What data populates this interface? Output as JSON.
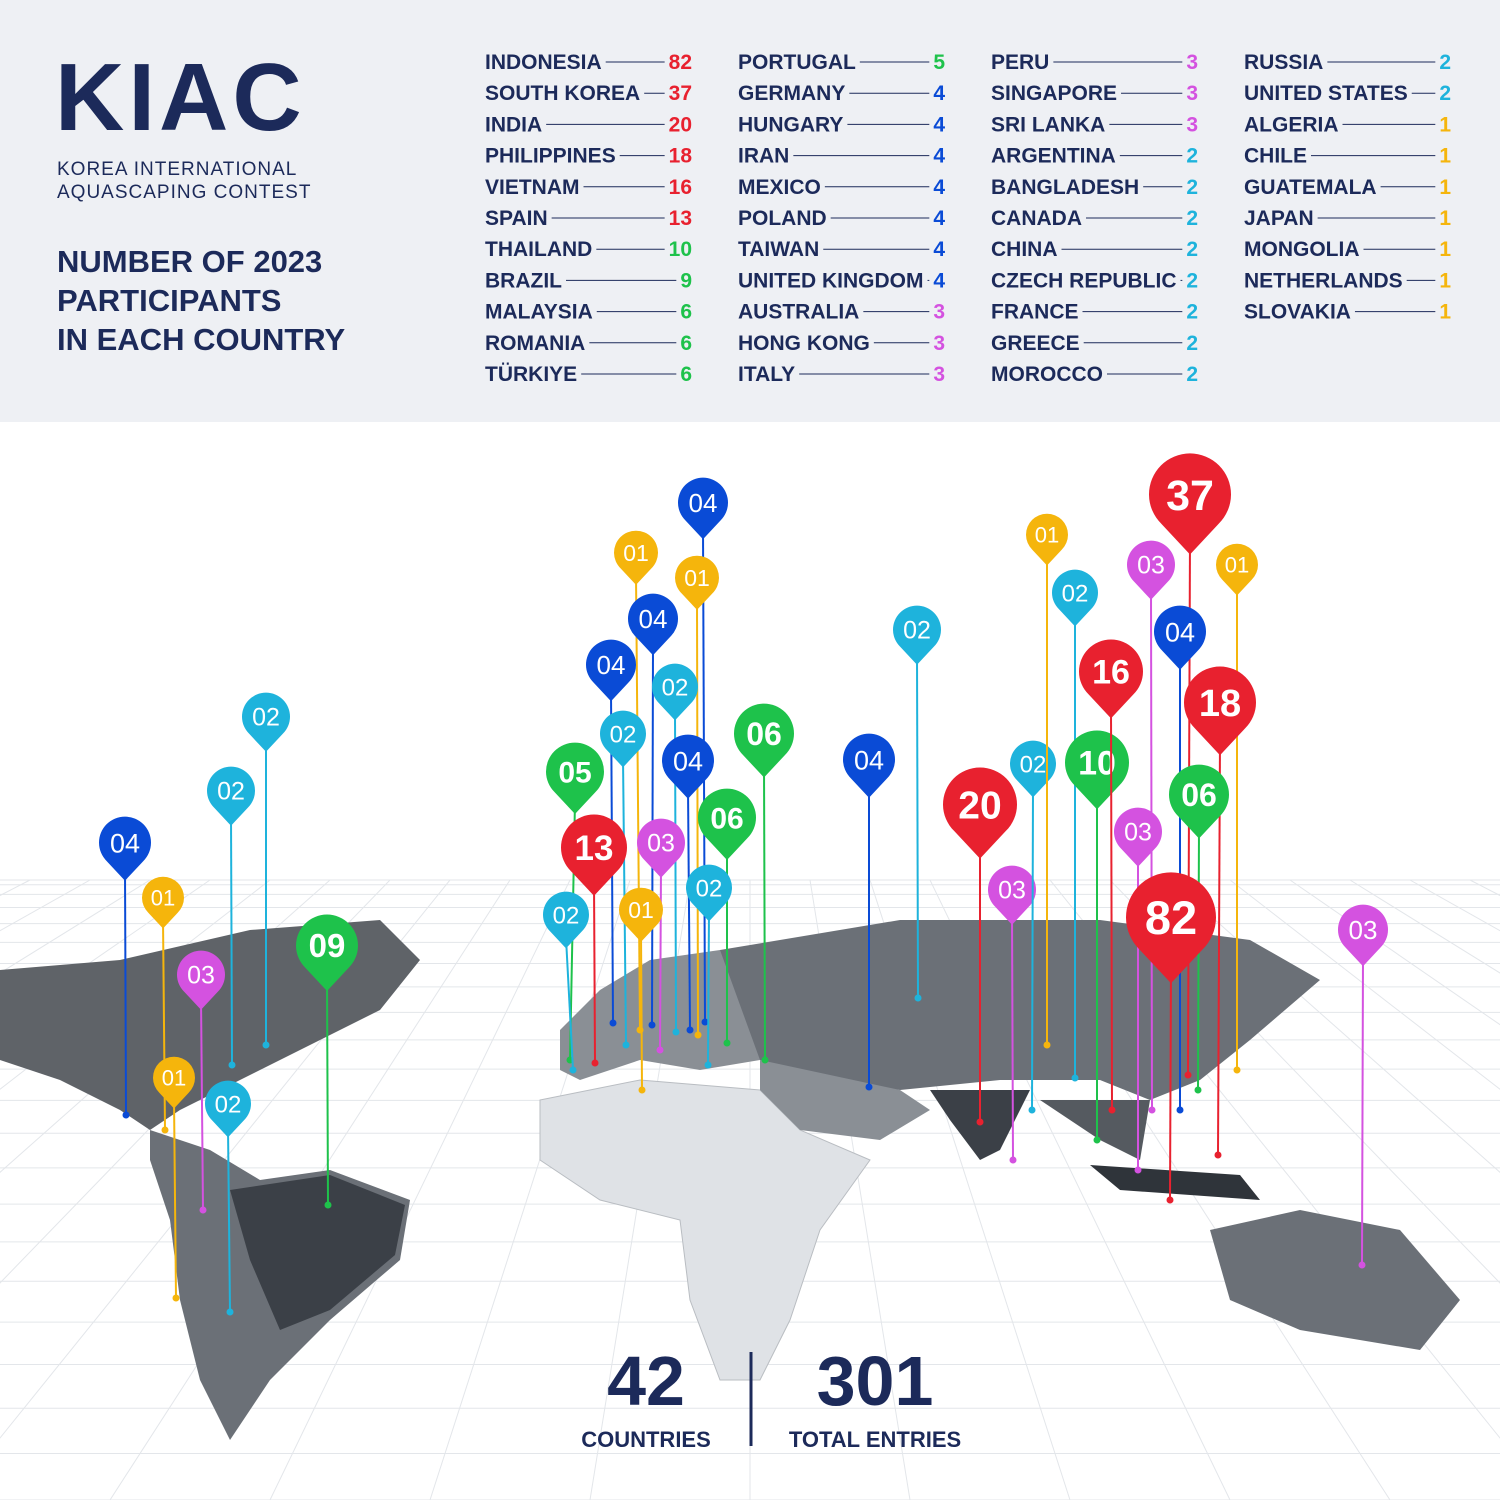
{
  "logo": {
    "mark": "KIAC",
    "name_line1": "KOREA INTERNATIONAL",
    "name_line2": "AQUASCAPING CONTEST"
  },
  "title_lines": [
    "NUMBER OF 2023",
    "PARTICIPANTS",
    "IN EACH COUNTRY"
  ],
  "countries": [
    {
      "name": "INDONESIA",
      "count": 82,
      "color": "#e8212f"
    },
    {
      "name": "SOUTH KOREA",
      "count": 37,
      "color": "#e8212f"
    },
    {
      "name": "INDIA",
      "count": 20,
      "color": "#e8212f"
    },
    {
      "name": "PHILIPPINES",
      "count": 18,
      "color": "#e8212f"
    },
    {
      "name": "VIETNAM",
      "count": 16,
      "color": "#e8212f"
    },
    {
      "name": "SPAIN",
      "count": 13,
      "color": "#e8212f"
    },
    {
      "name": "THAILAND",
      "count": 10,
      "color": "#1ec24b"
    },
    {
      "name": "BRAZIL",
      "count": 9,
      "color": "#1ec24b"
    },
    {
      "name": "MALAYSIA",
      "count": 6,
      "color": "#1ec24b"
    },
    {
      "name": "ROMANIA",
      "count": 6,
      "color": "#1ec24b"
    },
    {
      "name": "TÜRKIYE",
      "count": 6,
      "color": "#1ec24b"
    },
    {
      "name": "PORTUGAL",
      "count": 5,
      "color": "#1ec24b"
    },
    {
      "name": "GERMANY",
      "count": 4,
      "color": "#0a4bd6"
    },
    {
      "name": "HUNGARY",
      "count": 4,
      "color": "#0a4bd6"
    },
    {
      "name": "IRAN",
      "count": 4,
      "color": "#0a4bd6"
    },
    {
      "name": "MEXICO",
      "count": 4,
      "color": "#0a4bd6"
    },
    {
      "name": "POLAND",
      "count": 4,
      "color": "#0a4bd6"
    },
    {
      "name": "TAIWAN",
      "count": 4,
      "color": "#0a4bd6"
    },
    {
      "name": "UNITED KINGDOM",
      "count": 4,
      "color": "#0a4bd6"
    },
    {
      "name": "AUSTRALIA",
      "count": 3,
      "color": "#d452e0"
    },
    {
      "name": "HONG KONG",
      "count": 3,
      "color": "#d452e0"
    },
    {
      "name": "ITALY",
      "count": 3,
      "color": "#d452e0"
    },
    {
      "name": "PERU",
      "count": 3,
      "color": "#d452e0"
    },
    {
      "name": "SINGAPORE",
      "count": 3,
      "color": "#d452e0"
    },
    {
      "name": "SRI LANKA",
      "count": 3,
      "color": "#d452e0"
    },
    {
      "name": "ARGENTINA",
      "count": 2,
      "color": "#1eb3dc"
    },
    {
      "name": "BANGLADESH",
      "count": 2,
      "color": "#1eb3dc"
    },
    {
      "name": "CANADA",
      "count": 2,
      "color": "#1eb3dc"
    },
    {
      "name": "CHINA",
      "count": 2,
      "color": "#1eb3dc"
    },
    {
      "name": "CZECH REPUBLIC",
      "count": 2,
      "color": "#1eb3dc"
    },
    {
      "name": "FRANCE",
      "count": 2,
      "color": "#1eb3dc"
    },
    {
      "name": "GREECE",
      "count": 2,
      "color": "#1eb3dc"
    },
    {
      "name": "MOROCCO",
      "count": 2,
      "color": "#1eb3dc"
    },
    {
      "name": "RUSSIA",
      "count": 2,
      "color": "#1eb3dc"
    },
    {
      "name": "UNITED STATES",
      "count": 2,
      "color": "#1eb3dc"
    },
    {
      "name": "ALGERIA",
      "count": 1,
      "color": "#f5b50c"
    },
    {
      "name": "CHILE",
      "count": 1,
      "color": "#f5b50c"
    },
    {
      "name": "GUATEMALA",
      "count": 1,
      "color": "#f5b50c"
    },
    {
      "name": "JAPAN",
      "count": 1,
      "color": "#f5b50c"
    },
    {
      "name": "MONGOLIA",
      "count": 1,
      "color": "#f5b50c"
    },
    {
      "name": "NETHERLANDS",
      "count": 1,
      "color": "#f5b50c"
    },
    {
      "name": "SLOVAKIA",
      "count": 1,
      "color": "#f5b50c"
    }
  ],
  "pins": [
    {
      "label": "04",
      "color": "#0a4bd6"
    },
    {
      "label": "01",
      "color": "#f5b50c"
    },
    {
      "label": "01",
      "color": "#f5b50c"
    },
    {
      "label": "04",
      "color": "#0a4bd6"
    },
    {
      "label": "04",
      "color": "#0a4bd6"
    },
    {
      "label": "02",
      "color": "#1eb3dc"
    },
    {
      "label": "02",
      "color": "#1eb3dc"
    },
    {
      "label": "05",
      "color": "#1ec24b"
    },
    {
      "label": "04",
      "color": "#0a4bd6"
    },
    {
      "label": "06",
      "color": "#1ec24b"
    },
    {
      "label": "13",
      "color": "#e8212f"
    },
    {
      "label": "03",
      "color": "#d452e0"
    },
    {
      "label": "06",
      "color": "#1ec24b"
    },
    {
      "label": "02",
      "color": "#1eb3dc"
    },
    {
      "label": "02",
      "color": "#1eb3dc"
    },
    {
      "label": "01",
      "color": "#f5b50c"
    },
    {
      "label": "04",
      "color": "#0a4bd6"
    },
    {
      "label": "02",
      "color": "#1eb3dc"
    },
    {
      "label": "20",
      "color": "#e8212f"
    },
    {
      "label": "03",
      "color": "#d452e0"
    },
    {
      "label": "02",
      "color": "#1eb3dc"
    },
    {
      "label": "01",
      "color": "#f5b50c"
    },
    {
      "label": "02",
      "color": "#1eb3dc"
    },
    {
      "label": "10",
      "color": "#1ec24b"
    },
    {
      "label": "16",
      "color": "#e8212f"
    },
    {
      "label": "03",
      "color": "#d452e0"
    },
    {
      "label": "37",
      "color": "#e8212f"
    },
    {
      "label": "01",
      "color": "#f5b50c"
    },
    {
      "label": "04",
      "color": "#0a4bd6"
    },
    {
      "label": "18",
      "color": "#e8212f"
    },
    {
      "label": "06",
      "color": "#1ec24b"
    },
    {
      "label": "03",
      "color": "#d452e0"
    },
    {
      "label": "82",
      "color": "#e8212f"
    },
    {
      "label": "03",
      "color": "#d452e0"
    },
    {
      "label": "04",
      "color": "#0a4bd6"
    },
    {
      "label": "01",
      "color": "#f5b50c"
    },
    {
      "label": "03",
      "color": "#d452e0"
    },
    {
      "label": "09",
      "color": "#1ec24b"
    },
    {
      "label": "02",
      "color": "#1eb3dc"
    },
    {
      "label": "02",
      "color": "#1eb3dc"
    },
    {
      "label": "01",
      "color": "#f5b50c"
    },
    {
      "label": "02",
      "color": "#1eb3dc"
    }
  ],
  "summary": {
    "countries": {
      "value": 42,
      "label": "COUNTRIES"
    },
    "entries": {
      "value": 301,
      "label": "TOTAL ENTRIES"
    }
  }
}
